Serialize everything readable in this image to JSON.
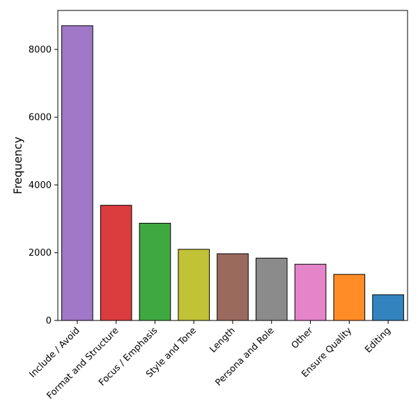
{
  "chart_data": {
    "type": "bar",
    "title": "",
    "xlabel": "",
    "ylabel": "Frequency",
    "ylim": [
      0,
      9150
    ],
    "yticks": [
      0,
      2000,
      4000,
      6000,
      8000
    ],
    "grid": false,
    "categories": [
      "Include / Avoid",
      "Format and Structure",
      "Focus / Emphasis",
      "Style and Tone",
      "Length",
      "Persona and Role",
      "Other",
      "Ensure Quality",
      "Editing"
    ],
    "values": [
      8700,
      3400,
      2870,
      2100,
      1970,
      1840,
      1660,
      1360,
      760
    ],
    "colors": [
      "#a078c7",
      "#db3c3e",
      "#40a840",
      "#c1c236",
      "#9a6a5e",
      "#8b8b8b",
      "#e584c8",
      "#ff8c26",
      "#3384be"
    ],
    "edge_color": "#000000"
  }
}
